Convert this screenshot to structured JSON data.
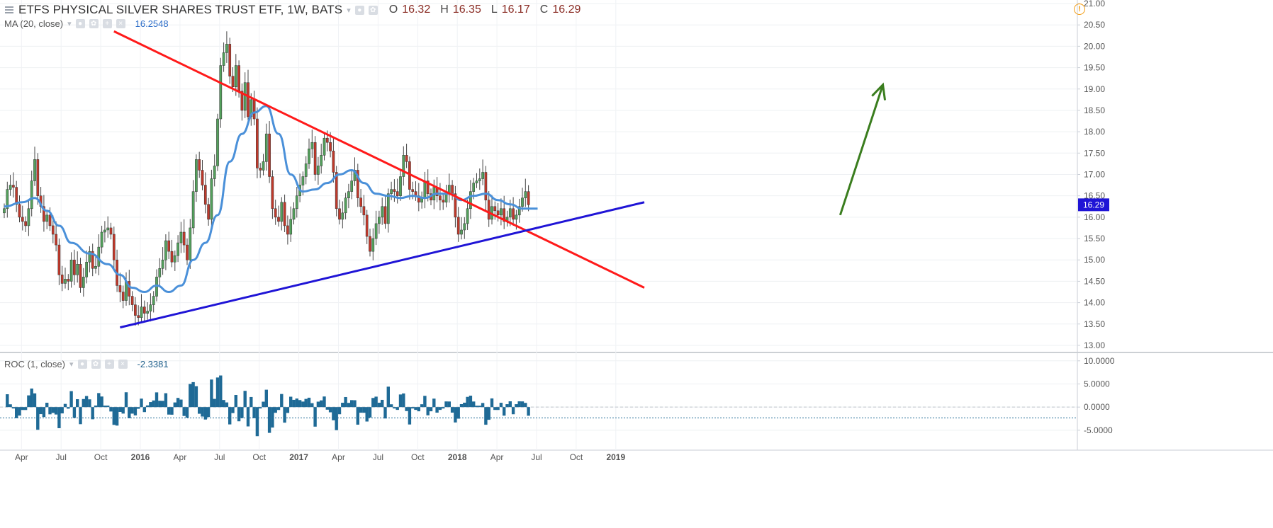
{
  "header": {
    "title": "ETFS PHYSICAL SILVER SHARES TRUST ETF, 1W, BATS",
    "ohlc": [
      {
        "label": "O",
        "value": "16.32"
      },
      {
        "label": "H",
        "value": "16.35"
      },
      {
        "label": "L",
        "value": "16.17"
      },
      {
        "label": "C",
        "value": "16.29"
      }
    ],
    "ma_label": "MA (20, close)",
    "ma_value": "16.2548",
    "roc_label": "ROC (1, close)",
    "roc_value": "-2.3381",
    "last_price_tag": "16.29"
  },
  "icons": [
    "menu-icon",
    "settings-icon",
    "eye-icon",
    "plus-icon",
    "close-icon",
    "warning-icon"
  ],
  "colors": {
    "candle_up": "#53a15c",
    "candle_down": "#c0392b",
    "ma_line": "#4a90d9",
    "resistance": "#ff1a1a",
    "support": "#1f14d6",
    "arrow": "#3a7d1e",
    "roc_bars": "#1f6a96",
    "price_tag_bg": "#1f14d6"
  },
  "chart_data": {
    "type": "candlestick",
    "interval": "1W",
    "x_labels": [
      "Apr",
      "Jul",
      "Oct",
      "2016",
      "Apr",
      "Jul",
      "Oct",
      "2017",
      "Apr",
      "Jul",
      "Oct",
      "2018",
      "Apr",
      "Jul",
      "Oct",
      "2019"
    ],
    "price_axis": {
      "ticks": [
        "21.00",
        "20.50",
        "20.00",
        "19.50",
        "19.00",
        "18.50",
        "18.00",
        "17.50",
        "17.00",
        "16.50",
        "16.00",
        "15.50",
        "15.00",
        "14.50",
        "14.00",
        "13.50",
        "13.00"
      ],
      "range": [
        12.9,
        21.05
      ]
    },
    "roc_axis": {
      "ticks": [
        "10.0000",
        "5.0000",
        "0.0000",
        "-5.0000"
      ],
      "range": [
        -9,
        11.5
      ]
    },
    "closes": [
      16.2,
      16.65,
      16.75,
      16.7,
      16.3,
      16.0,
      15.9,
      15.8,
      16.2,
      16.85,
      17.35,
      16.5,
      16.25,
      15.9,
      16.05,
      15.8,
      15.6,
      15.35,
      14.65,
      14.45,
      14.55,
      14.5,
      15.0,
      14.65,
      14.9,
      14.35,
      14.6,
      14.95,
      15.2,
      14.8,
      14.85,
      15.3,
      15.65,
      15.7,
      15.75,
      15.6,
      15.0,
      14.4,
      14.25,
      14.05,
      14.5,
      14.15,
      13.95,
      13.7,
      13.65,
      13.9,
      13.75,
      13.8,
      13.95,
      14.15,
      14.6,
      14.8,
      15.0,
      15.45,
      15.2,
      14.95,
      15.1,
      15.4,
      15.65,
      15.35,
      15.0,
      15.75,
      16.6,
      17.35,
      17.1,
      16.75,
      16.3,
      15.95,
      16.9,
      17.2,
      18.3,
      19.55,
      19.85,
      20.05,
      19.3,
      19.05,
      19.55,
      18.95,
      18.5,
      19.15,
      18.35,
      18.75,
      18.3,
      17.15,
      17.1,
      17.3,
      17.95,
      16.95,
      16.2,
      16.0,
      15.9,
      16.35,
      15.8,
      15.6,
      15.95,
      16.2,
      16.5,
      16.75,
      16.95,
      17.25,
      17.6,
      17.75,
      17.0,
      17.2,
      17.45,
      17.85,
      17.75,
      17.55,
      17.05,
      16.2,
      15.95,
      16.1,
      16.45,
      16.6,
      16.85,
      17.1,
      16.45,
      16.25,
      16.05,
      15.55,
      15.2,
      15.5,
      15.85,
      16.0,
      16.25,
      15.85,
      16.55,
      16.65,
      16.6,
      16.5,
      16.95,
      17.45,
      17.3,
      16.65,
      16.6,
      16.5,
      16.35,
      16.45,
      16.85,
      16.55,
      16.4,
      16.7,
      16.5,
      16.4,
      16.35,
      16.55,
      16.75,
      16.55,
      16.0,
      15.6,
      15.7,
      15.85,
      16.2,
      16.6,
      16.8,
      16.85,
      16.9,
      17.05,
      16.4,
      15.95,
      16.25,
      16.15,
      16.05,
      16.2,
      15.9,
      16.0,
      16.2,
      15.95,
      16.05,
      16.25,
      16.45,
      16.6,
      16.29
    ],
    "ma_anchors": [
      [
        0,
        16.25
      ],
      [
        6,
        16.35
      ],
      [
        10,
        16.45
      ],
      [
        14,
        16.15
      ],
      [
        18,
        15.8
      ],
      [
        22,
        15.4
      ],
      [
        28,
        15.15
      ],
      [
        34,
        14.9
      ],
      [
        38,
        14.65
      ],
      [
        42,
        14.35
      ],
      [
        46,
        14.25
      ],
      [
        50,
        14.4
      ],
      [
        54,
        14.25
      ],
      [
        58,
        14.4
      ],
      [
        62,
        15.0
      ],
      [
        66,
        15.4
      ],
      [
        70,
        16.05
      ],
      [
        74,
        17.3
      ],
      [
        78,
        17.95
      ],
      [
        82,
        18.45
      ],
      [
        86,
        18.6
      ],
      [
        90,
        17.95
      ],
      [
        94,
        17.0
      ],
      [
        98,
        16.6
      ],
      [
        102,
        16.65
      ],
      [
        106,
        16.8
      ],
      [
        110,
        17.0
      ],
      [
        114,
        17.1
      ],
      [
        118,
        16.8
      ],
      [
        122,
        16.55
      ],
      [
        126,
        16.5
      ],
      [
        130,
        16.45
      ],
      [
        134,
        16.5
      ],
      [
        138,
        16.45
      ],
      [
        142,
        16.55
      ],
      [
        146,
        16.55
      ],
      [
        150,
        16.4
      ],
      [
        154,
        16.5
      ],
      [
        158,
        16.55
      ],
      [
        162,
        16.4
      ],
      [
        166,
        16.3
      ],
      [
        170,
        16.2
      ],
      [
        175,
        16.2
      ]
    ],
    "resistance_line": {
      "from": [
        36,
        20.35
      ],
      "to": [
        210,
        14.35
      ]
    },
    "support_line": {
      "from": [
        38,
        13.42
      ],
      "to": [
        210,
        16.35
      ]
    },
    "projection_arrow": {
      "from": [
        158,
        16.05
      ],
      "to": [
        172,
        19.1
      ]
    }
  }
}
